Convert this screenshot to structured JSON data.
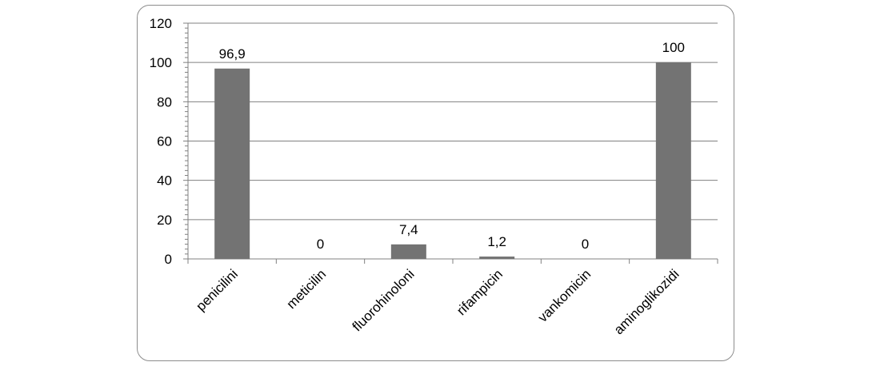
{
  "chart_data": {
    "type": "bar",
    "categories": [
      "penicilini",
      "meticilin",
      "fluorohinoloni",
      "rifampicin",
      "vankomicin",
      "aminoglikozidi"
    ],
    "values": [
      96.9,
      0,
      7.4,
      1.2,
      0,
      100
    ],
    "data_labels": [
      "96,9",
      "0",
      "7,4",
      "1,2",
      "0",
      "100"
    ],
    "y_ticks": [
      "0",
      "20",
      "40",
      "60",
      "80",
      "100",
      "120"
    ],
    "ylim": [
      0,
      120
    ],
    "grid": true,
    "bar_color": "#737373",
    "gridline_color": "#808080",
    "axis_color": "#808080"
  }
}
